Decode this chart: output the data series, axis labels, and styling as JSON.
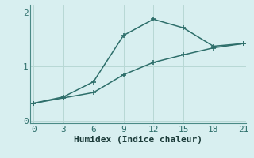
{
  "xlabel": "Humidex (Indice chaleur)",
  "background_color": "#d8eff0",
  "line_color": "#2d6e6a",
  "grid_color": "#b8d8d5",
  "x_ticks": [
    0,
    3,
    6,
    9,
    12,
    15,
    18,
    21
  ],
  "xlim": [
    -0.3,
    21.3
  ],
  "ylim": [
    -0.05,
    2.15
  ],
  "y_ticks": [
    0,
    1,
    2
  ],
  "line1_x": [
    0,
    3,
    6,
    9,
    12,
    15,
    18,
    21
  ],
  "line1_y": [
    0.32,
    0.44,
    0.72,
    1.58,
    1.88,
    1.72,
    1.38,
    1.43
  ],
  "line2_x": [
    0,
    3,
    6,
    9,
    12,
    15,
    18,
    21
  ],
  "line2_y": [
    0.32,
    0.42,
    0.52,
    0.85,
    1.08,
    1.22,
    1.35,
    1.43
  ],
  "tick_fontsize": 8,
  "xlabel_fontsize": 8
}
